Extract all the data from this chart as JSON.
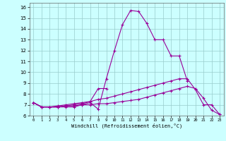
{
  "title": "",
  "xlabel": "Windchill (Refroidissement éolien,°C)",
  "x": [
    0,
    1,
    2,
    3,
    4,
    5,
    6,
    7,
    8,
    9,
    10,
    11,
    12,
    13,
    14,
    15,
    16,
    17,
    18,
    19,
    20,
    21,
    22,
    23
  ],
  "line1": [
    7.2,
    6.8,
    6.8,
    6.8,
    6.8,
    6.8,
    7.0,
    7.2,
    6.6,
    9.4,
    12.0,
    14.4,
    15.7,
    15.6,
    14.5,
    13.0,
    13.0,
    11.5,
    11.5,
    9.2,
    null,
    null,
    null,
    null
  ],
  "line2": [
    7.2,
    6.8,
    6.8,
    6.8,
    6.9,
    7.0,
    7.1,
    7.3,
    8.5,
    8.5,
    null,
    null,
    null,
    null,
    null,
    null,
    null,
    null,
    null,
    null,
    null,
    null,
    null,
    null
  ],
  "line3": [
    7.2,
    6.8,
    6.8,
    6.9,
    7.0,
    7.1,
    7.2,
    7.3,
    7.5,
    7.6,
    7.8,
    8.0,
    8.2,
    8.4,
    8.6,
    8.8,
    9.0,
    9.2,
    9.4,
    9.4,
    8.4,
    7.0,
    7.0,
    6.1
  ],
  "line4": [
    7.2,
    6.8,
    6.8,
    6.8,
    6.9,
    6.9,
    7.0,
    7.0,
    7.1,
    7.1,
    7.2,
    7.3,
    7.4,
    7.5,
    7.7,
    7.9,
    8.1,
    8.3,
    8.5,
    8.7,
    8.5,
    7.6,
    6.5,
    6.1
  ],
  "line_color": "#990099",
  "bg_color": "#ccffff",
  "grid_color": "#99cccc",
  "xlim": [
    -0.5,
    23.5
  ],
  "ylim": [
    6,
    16.4
  ],
  "yticks": [
    6,
    7,
    8,
    9,
    10,
    11,
    12,
    13,
    14,
    15,
    16
  ],
  "xticks": [
    0,
    1,
    2,
    3,
    4,
    5,
    6,
    7,
    8,
    9,
    10,
    11,
    12,
    13,
    14,
    15,
    16,
    17,
    18,
    19,
    20,
    21,
    22,
    23
  ],
  "xtick_labels": [
    "0",
    "1",
    "2",
    "3",
    "4",
    "5",
    "6",
    "7",
    "8",
    "9",
    "10",
    "11",
    "12",
    "13",
    "14",
    "15",
    "16",
    "17",
    "18",
    "19",
    "20",
    "21",
    "22",
    "23"
  ]
}
